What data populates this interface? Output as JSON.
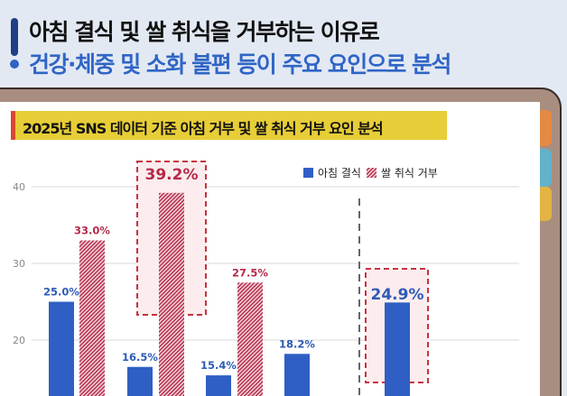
{
  "headline": {
    "line1": "아침 결식 및 쌀 취식을 거부하는 이유로",
    "line2": "건강·체중 및 소화 불편 등이 주요 요인으로 분석"
  },
  "colors": {
    "blue": "#2f5fc4",
    "red": "#b8324f",
    "accent_title": "#2f65c6",
    "title_bar": "#e7cd37"
  },
  "chart_data": {
    "type": "bar",
    "title": "2025년 SNS 데이터 기준 아침 거부 및 쌀 취식 거부 요인 분석",
    "legend_position": "top-right",
    "grid": true,
    "yticks": [
      20,
      30,
      40
    ],
    "ylim": [
      0,
      44
    ],
    "series": [
      {
        "name": "아침 결식",
        "values": [
          25.0,
          16.5,
          15.4,
          18.2,
          24.9
        ],
        "labels": [
          "25.0%",
          "16.5%",
          "15.4%",
          "18.2%",
          "24.9%"
        ]
      },
      {
        "name": "쌀 취식 거부",
        "values": [
          33.0,
          39.2,
          27.5,
          null,
          null
        ],
        "labels": [
          "33.0%",
          "39.2%",
          "27.5%",
          "",
          ""
        ]
      }
    ],
    "highlighted": [
      "쌀 취식 거부 39.2%",
      "아침 결식 24.9%"
    ]
  }
}
